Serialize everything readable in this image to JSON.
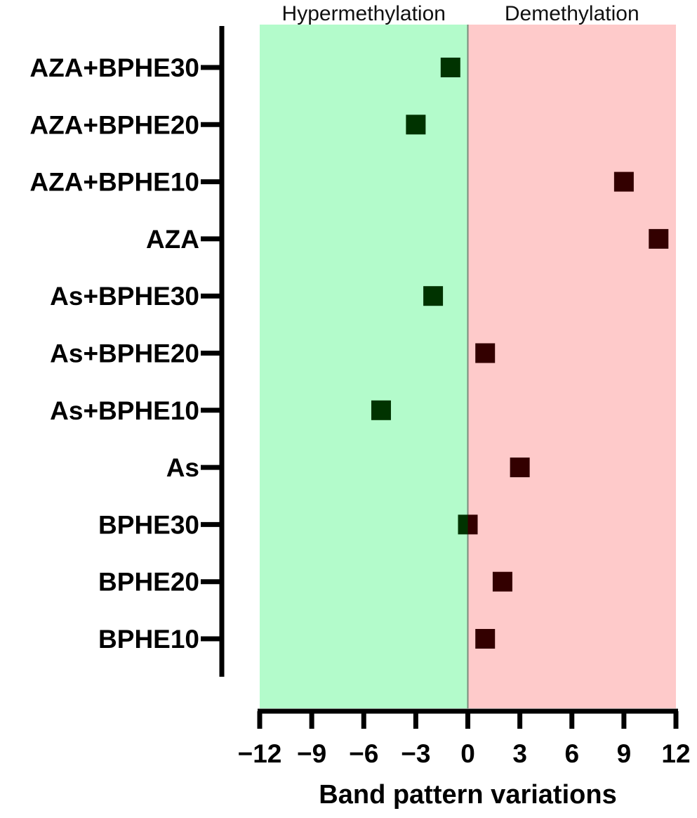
{
  "chart_data": {
    "type": "scatter",
    "xlabel": "Band pattern variations",
    "ylabel": "",
    "xlim": [
      -12,
      12
    ],
    "xticks": [
      -12,
      -9,
      -6,
      -3,
      0,
      3,
      6,
      9,
      12
    ],
    "xtick_labels": [
      "−12",
      "−9",
      "−6",
      "−3",
      "0",
      "3",
      "6",
      "9",
      "12"
    ],
    "grid": false,
    "regions": [
      {
        "label": "Hypermethylation",
        "from": -12,
        "to": 0,
        "color": "#b3fbcb"
      },
      {
        "label": "Demethylation",
        "from": 0,
        "to": 12,
        "color": "#fecaca"
      }
    ],
    "categories": [
      "AZA+BPHE30",
      "AZA+BPHE20",
      "AZA+BPHE10",
      "AZA",
      "As+BPHE30",
      "As+BPHE20",
      "As+BPHE10",
      "As",
      "BPHE30",
      "BPHE20",
      "BPHE10"
    ],
    "values": [
      -1,
      -3,
      9,
      11,
      -2,
      1,
      -5,
      3,
      0,
      2,
      1
    ],
    "colors": {
      "negative": "#003300",
      "positive": "#330000"
    }
  }
}
